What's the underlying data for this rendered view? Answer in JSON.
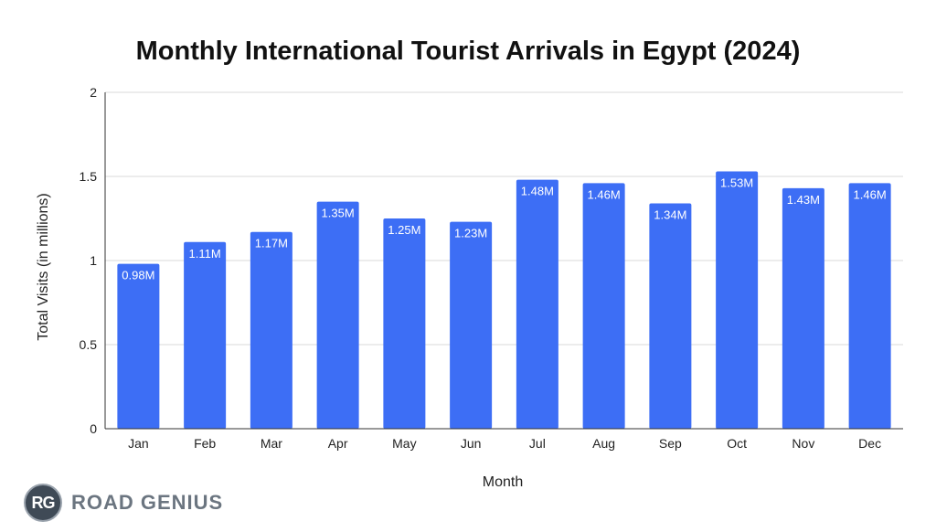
{
  "chart_data": {
    "type": "bar",
    "title": "Monthly International Tourist Arrivals in Egypt (2024)",
    "xlabel": "Month",
    "ylabel": "Total Visits (in millions)",
    "categories": [
      "Jan",
      "Feb",
      "Mar",
      "Apr",
      "May",
      "Jun",
      "Jul",
      "Aug",
      "Sep",
      "Oct",
      "Nov",
      "Dec"
    ],
    "values": [
      0.98,
      1.11,
      1.17,
      1.35,
      1.25,
      1.23,
      1.48,
      1.46,
      1.34,
      1.53,
      1.43,
      1.46
    ],
    "data_labels": [
      "0.98M",
      "1.11M",
      "1.17M",
      "1.35M",
      "1.25M",
      "1.23M",
      "1.48M",
      "1.46M",
      "1.34M",
      "1.53M",
      "1.43M",
      "1.46M"
    ],
    "ylim": [
      0,
      2
    ],
    "yticks": [
      0,
      0.5,
      1,
      1.5,
      2
    ],
    "ytick_labels": [
      "0",
      "0.5",
      "1",
      "1.5",
      "2"
    ],
    "grid": true,
    "legend": "none",
    "bar_color": "#3d6ef5"
  },
  "brand": {
    "badge_text": "RG",
    "name": "ROAD GENIUS"
  }
}
